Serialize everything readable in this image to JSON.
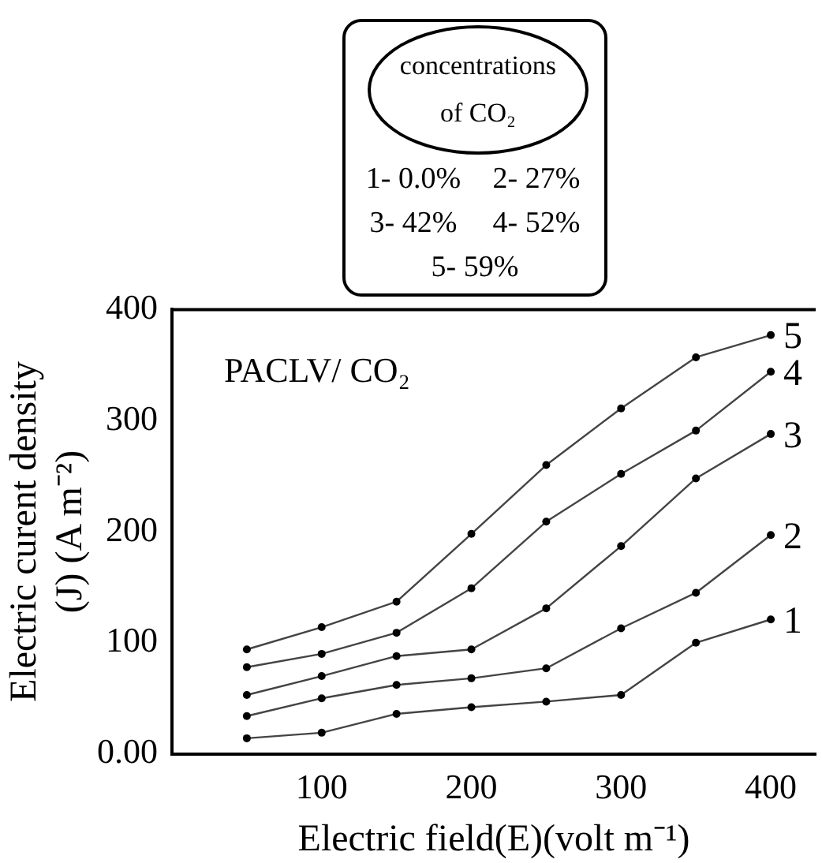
{
  "chart_data": {
    "type": "line",
    "legend_title": "concentrations of CO₂",
    "xlabel": "Electric field(E)(volt m⁻¹)",
    "ylabel": "Electric curent density (J) (A m⁻²)",
    "x": [
      50,
      100,
      150,
      200,
      250,
      300,
      350,
      400
    ],
    "xlim": [
      0,
      430
    ],
    "xticks": [
      100,
      200,
      300,
      400
    ],
    "ylim": [
      0,
      400
    ],
    "yticks": [
      {
        "value": 0,
        "label": "0.00"
      },
      100,
      200,
      300,
      400
    ],
    "grid": false,
    "marker": "circle",
    "line_style": "solid",
    "annotations": [
      "PACLV/ CO₂",
      "1- 0.0%",
      "2- 27%",
      "3- 42%",
      "4- 52%",
      "5- 59%"
    ],
    "series": [
      {
        "name": "1",
        "color": "#444444",
        "values": [
          14,
          19,
          36,
          42,
          47,
          53,
          100,
          121
        ]
      },
      {
        "name": "2",
        "color": "#444444",
        "values": [
          34,
          50,
          62,
          68,
          77,
          113,
          145,
          197
        ]
      },
      {
        "name": "3",
        "color": "#444444",
        "values": [
          53,
          70,
          88,
          94,
          131,
          187,
          248,
          288
        ]
      },
      {
        "name": "4",
        "color": "#444444",
        "values": [
          78,
          90,
          109,
          149,
          209,
          252,
          291,
          344
        ]
      },
      {
        "name": "5",
        "color": "#444444",
        "values": [
          94,
          114,
          137,
          198,
          260,
          311,
          357,
          377
        ]
      }
    ]
  }
}
